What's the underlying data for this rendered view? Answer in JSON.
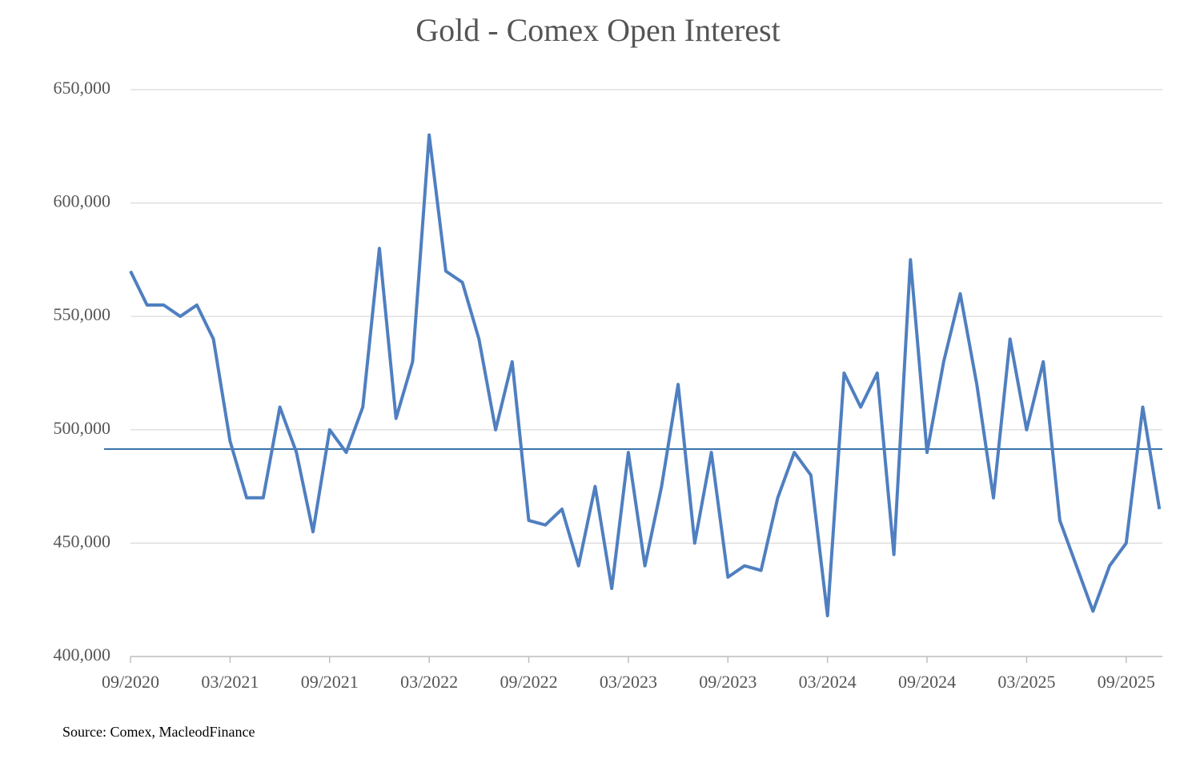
{
  "chart_data": {
    "type": "line",
    "title": "Gold - Comex Open Interest",
    "x": [
      "09/2020",
      "10/2020",
      "11/2020",
      "12/2020",
      "01/2021",
      "02/2021",
      "03/2021",
      "04/2021",
      "05/2021",
      "06/2021",
      "07/2021",
      "08/2021",
      "09/2021",
      "10/2021",
      "11/2021",
      "12/2021",
      "01/2022",
      "02/2022",
      "03/2022",
      "04/2022",
      "05/2022",
      "06/2022",
      "07/2022",
      "08/2022",
      "09/2022",
      "10/2022",
      "11/2022",
      "12/2022",
      "01/2023",
      "02/2023",
      "03/2023",
      "04/2023",
      "05/2023",
      "06/2023",
      "07/2023",
      "08/2023",
      "09/2023",
      "10/2023",
      "11/2023",
      "12/2023",
      "01/2024",
      "02/2024",
      "03/2024",
      "04/2024",
      "05/2024",
      "06/2024",
      "07/2024",
      "08/2024",
      "09/2024",
      "10/2024",
      "11/2024",
      "12/2024",
      "01/2025",
      "02/2025",
      "03/2025",
      "04/2025",
      "05/2025",
      "06/2025",
      "07/2025",
      "08/2025",
      "09/2025",
      "10/2025",
      "11/2025"
    ],
    "series": [
      {
        "color": "#4f7fc0",
        "values": [
          570000,
          555000,
          555000,
          550000,
          555000,
          540000,
          495000,
          470000,
          470000,
          510000,
          490000,
          455000,
          500000,
          490000,
          510000,
          580000,
          505000,
          530000,
          630000,
          570000,
          565000,
          540000,
          500000,
          530000,
          460000,
          458000,
          465000,
          440000,
          475000,
          430000,
          490000,
          440000,
          475000,
          520000,
          450000,
          490000,
          435000,
          440000,
          438000,
          470000,
          490000,
          480000,
          418000,
          525000,
          510000,
          525000,
          445000,
          575000,
          490000,
          530000,
          560000,
          520000,
          470000,
          540000,
          500000,
          530000,
          460000,
          440000,
          420000,
          440000,
          450000,
          510000,
          465000
        ]
      }
    ],
    "reference_line": 491500,
    "ylim": [
      400000,
      650000
    ],
    "yticks": [
      {
        "value": 400000,
        "label": "400,000"
      },
      {
        "value": 450000,
        "label": "450,000"
      },
      {
        "value": 500000,
        "label": "500,000"
      },
      {
        "value": 550000,
        "label": "550,000"
      },
      {
        "value": 600000,
        "label": "600,000"
      },
      {
        "value": 650000,
        "label": "650,000"
      }
    ],
    "xticks": [
      "09/2020",
      "03/2021",
      "09/2021",
      "03/2022",
      "09/2022",
      "03/2023",
      "09/2023",
      "03/2024",
      "09/2024",
      "03/2025",
      "09/2025"
    ],
    "grid": true,
    "source": "Source: Comex,  MacleodFinance"
  }
}
